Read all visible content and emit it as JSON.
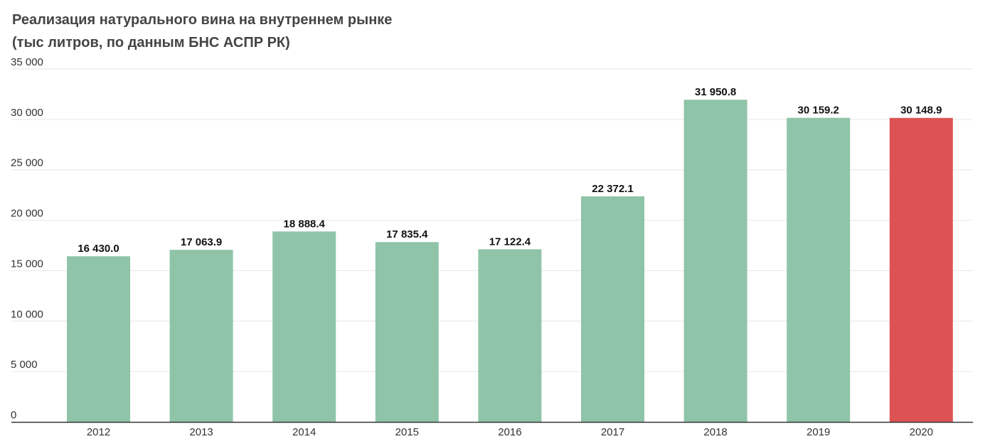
{
  "chart_data": {
    "type": "bar",
    "title": "Реализация натурального вина на внутреннем рынке",
    "subtitle": "(тыс литров, по данным БНС АСПР РК)",
    "xlabel": "",
    "ylabel": "",
    "categories": [
      "2012",
      "2013",
      "2014",
      "2015",
      "2016",
      "2017",
      "2018",
      "2019",
      "2020"
    ],
    "values": [
      16430.0,
      17063.9,
      18888.4,
      17835.4,
      17122.4,
      22372.1,
      31950.8,
      30159.2,
      30148.9
    ],
    "value_labels": [
      "16 430.0",
      "17 063.9",
      "18 888.4",
      "17 835.4",
      "17 122.4",
      "22 372.1",
      "31 950.8",
      "30 159.2",
      "30 148.9"
    ],
    "ylim": [
      0,
      35000
    ],
    "yticks": [
      0,
      5000,
      10000,
      15000,
      20000,
      25000,
      30000,
      35000
    ],
    "ytick_labels": [
      "0",
      "5 000",
      "10 000",
      "15 000",
      "20 000",
      "25 000",
      "30 000",
      "35 000"
    ],
    "grid": true,
    "legend": "none",
    "colors": {
      "bar": "#8fc4a8",
      "highlight_bar": "#dd5353",
      "highlight_category": "2020",
      "grid": "#e6e6e6",
      "axis": "#333333"
    }
  }
}
